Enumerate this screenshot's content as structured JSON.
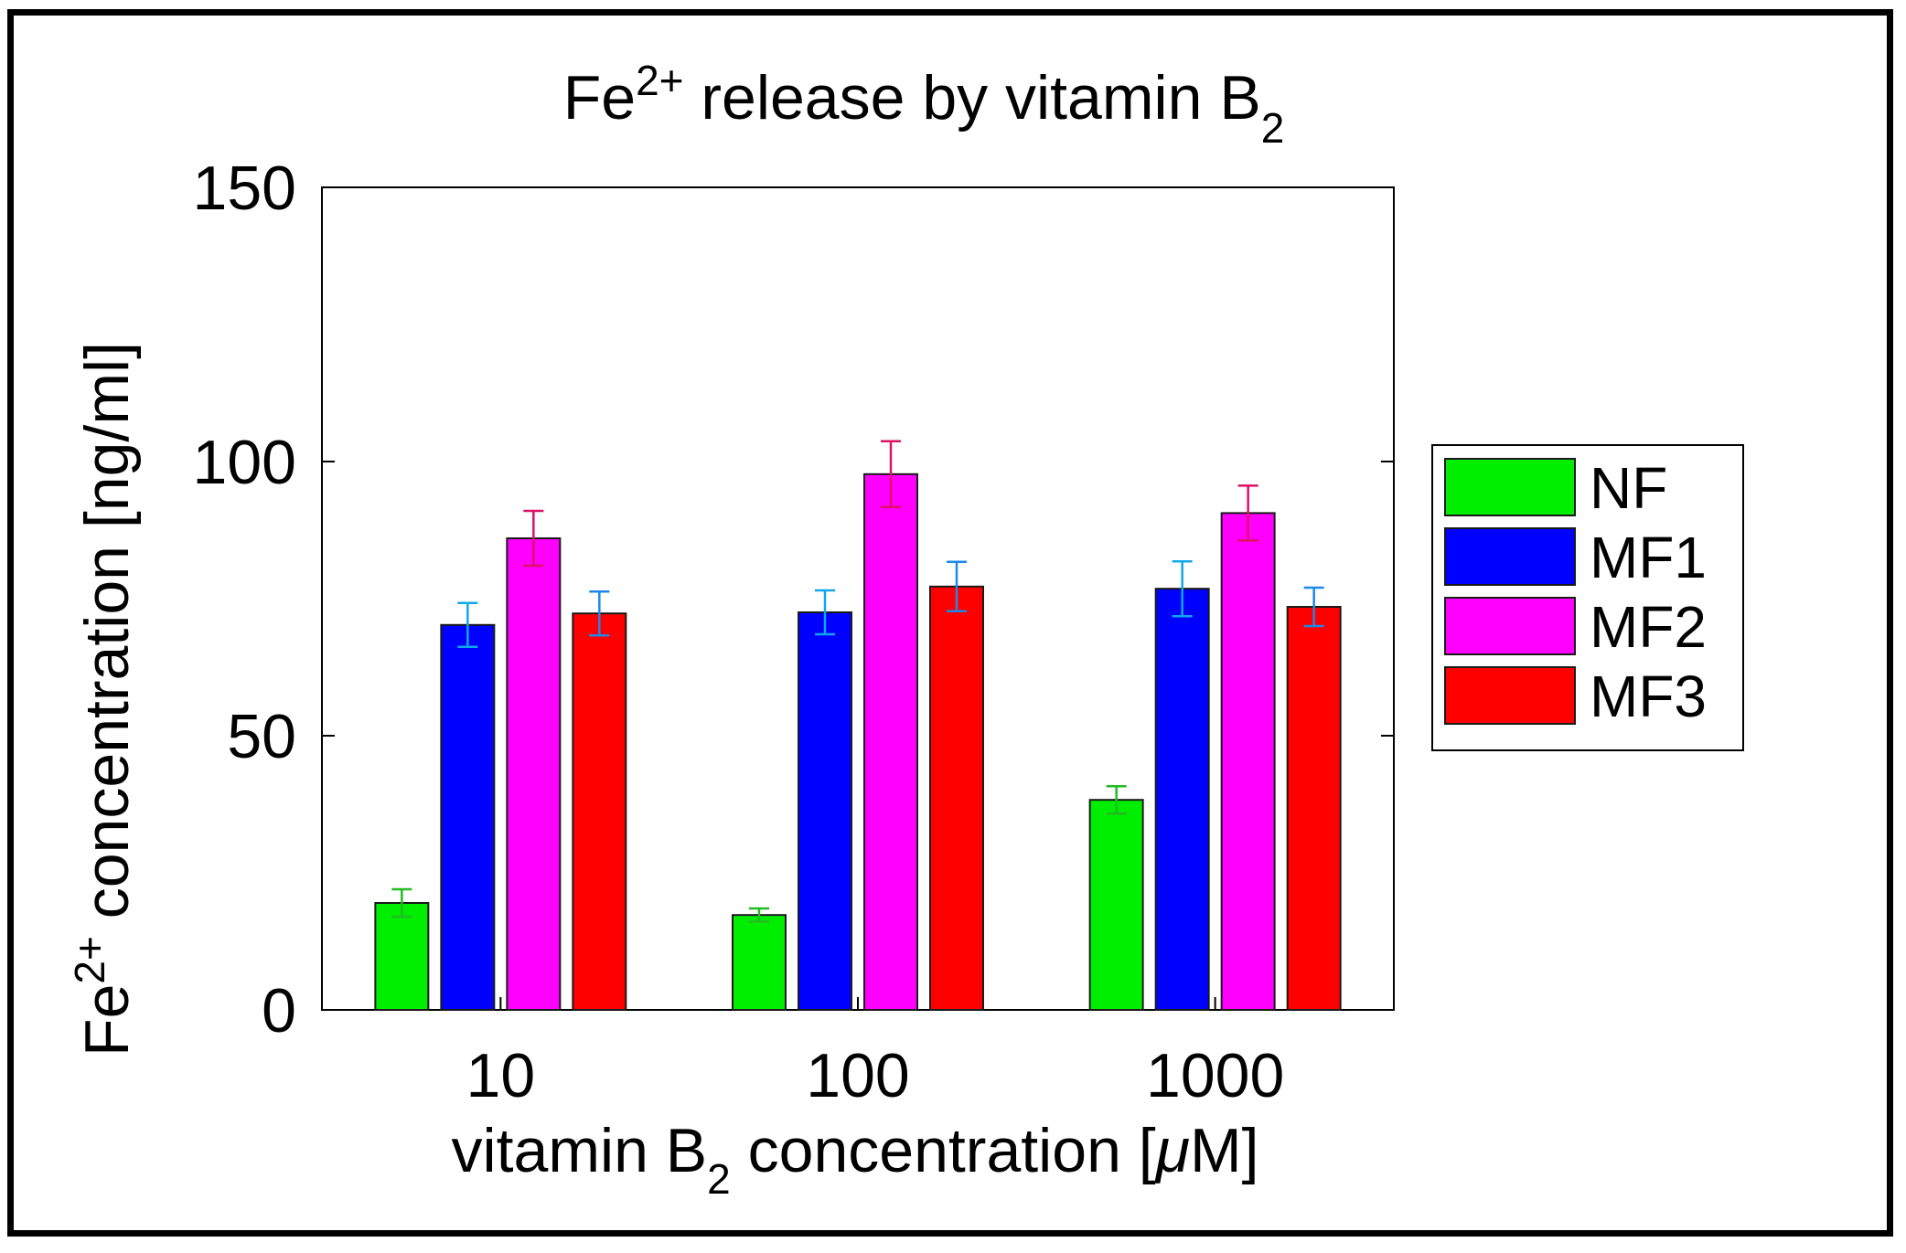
{
  "chart_data": {
    "type": "bar",
    "title": {
      "main": "Fe",
      "sup": "2+",
      "rest": " release by vitamin B",
      "sub": "2"
    },
    "xlabel": {
      "main": "vitamin B",
      "sub": "2",
      "rest": " concentration [",
      "mu": "μ",
      "end": "M]"
    },
    "ylabel": {
      "main": "Fe",
      "sup": "2+",
      "rest": " concentration [ng/ml]"
    },
    "categories": [
      "10",
      "100",
      "1000"
    ],
    "ylim": [
      0,
      150
    ],
    "yticks": [
      "0",
      "50",
      "100",
      "150"
    ],
    "ytick_values": [
      0,
      50,
      100,
      150
    ],
    "legend_position": "right",
    "grid": false,
    "series": [
      {
        "name": "NF",
        "color": "#00ee00",
        "error_color": "#22bb22",
        "values": [
          19.5,
          17.3,
          38.3
        ],
        "errors": [
          2.5,
          1.2,
          2.5
        ]
      },
      {
        "name": "MF1",
        "color": "#0000ff",
        "error_color": "#10a8e8",
        "values": [
          70.2,
          72.5,
          76.8
        ],
        "errors": [
          4.0,
          4.0,
          5.0
        ]
      },
      {
        "name": "MF2",
        "color": "#ff00ff",
        "error_color": "#dd1166",
        "values": [
          86.0,
          97.7,
          90.6
        ],
        "errors": [
          5.0,
          6.0,
          5.0
        ]
      },
      {
        "name": "MF3",
        "color": "#ff0000",
        "error_color": "#1e88e8",
        "values": [
          72.3,
          77.2,
          73.5
        ],
        "errors": [
          4.0,
          4.5,
          3.5
        ]
      }
    ]
  }
}
